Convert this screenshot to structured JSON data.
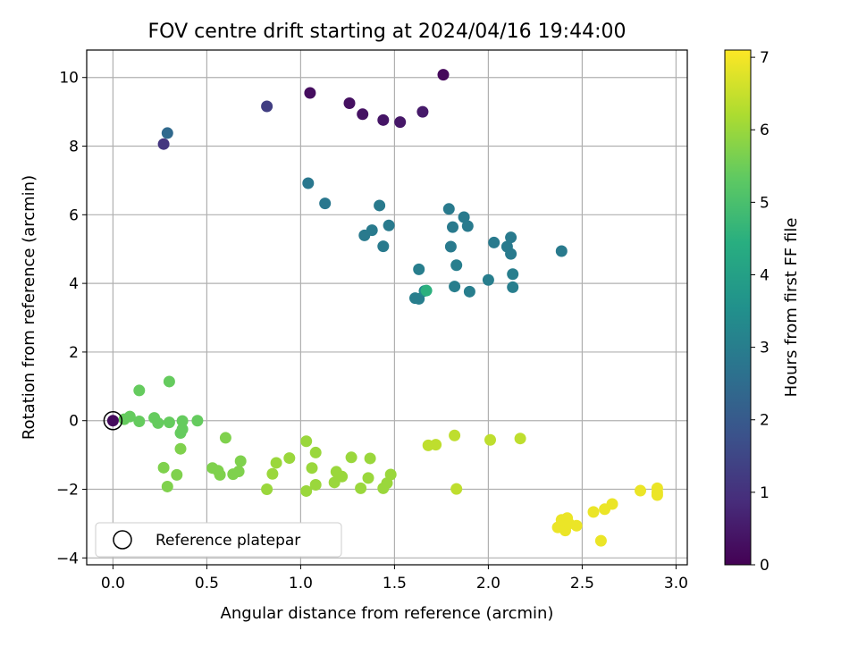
{
  "chart_data": {
    "type": "scatter",
    "title": "FOV centre drift starting at 2024/04/16 19:44:00",
    "xlabel": "Angular distance from reference (arcmin)",
    "ylabel": "Rotation from reference (arcmin)",
    "xlim": [
      -0.14,
      3.06
    ],
    "ylim": [
      -4.2,
      10.8
    ],
    "xticks": [
      "0.0",
      "0.5",
      "1.0",
      "1.5",
      "2.0",
      "2.5",
      "3.0"
    ],
    "xtick_values": [
      0,
      0.5,
      1.0,
      1.5,
      2.0,
      2.5,
      3.0
    ],
    "yticks": [
      "−4",
      "−2",
      "0",
      "2",
      "4",
      "6",
      "8",
      "10"
    ],
    "ytick_values": [
      -4,
      -2,
      0,
      2,
      4,
      6,
      8,
      10
    ],
    "grid": true,
    "legend": {
      "position": "lower-left",
      "entries": [
        "Reference platepar"
      ]
    },
    "colorbar": {
      "label": "Hours from first FF file",
      "colormap": "viridis",
      "range": [
        0,
        7.1
      ],
      "ticks": [
        "0",
        "1",
        "2",
        "3",
        "4",
        "5",
        "6",
        "7"
      ],
      "tick_values": [
        0,
        1,
        2,
        3,
        4,
        5,
        6,
        7
      ]
    },
    "reference_point": {
      "x": 0,
      "y": 0
    },
    "points": [
      {
        "x": 1.76,
        "y": 10.08,
        "c": 0.15
      },
      {
        "x": 1.05,
        "y": 9.55,
        "c": 0.25
      },
      {
        "x": 1.26,
        "y": 9.25,
        "c": 0.3
      },
      {
        "x": 1.33,
        "y": 8.93,
        "c": 0.35
      },
      {
        "x": 1.44,
        "y": 8.76,
        "c": 0.4
      },
      {
        "x": 1.53,
        "y": 8.7,
        "c": 0.45
      },
      {
        "x": 1.65,
        "y": 9.0,
        "c": 0.5
      },
      {
        "x": 0.82,
        "y": 9.16,
        "c": 1.3
      },
      {
        "x": 0.27,
        "y": 8.06,
        "c": 1.1
      },
      {
        "x": 0.29,
        "y": 8.38,
        "c": 2.4
      },
      {
        "x": 1.04,
        "y": 6.92,
        "c": 2.8
      },
      {
        "x": 1.13,
        "y": 6.33,
        "c": 2.8
      },
      {
        "x": 1.42,
        "y": 6.27,
        "c": 2.9
      },
      {
        "x": 1.47,
        "y": 5.69,
        "c": 2.9
      },
      {
        "x": 1.38,
        "y": 5.55,
        "c": 2.9
      },
      {
        "x": 1.34,
        "y": 5.4,
        "c": 2.9
      },
      {
        "x": 1.44,
        "y": 5.08,
        "c": 2.9
      },
      {
        "x": 1.79,
        "y": 6.17,
        "c": 2.9
      },
      {
        "x": 1.87,
        "y": 5.93,
        "c": 2.9
      },
      {
        "x": 1.81,
        "y": 5.64,
        "c": 2.9
      },
      {
        "x": 1.89,
        "y": 5.67,
        "c": 2.9
      },
      {
        "x": 1.8,
        "y": 5.07,
        "c": 2.9
      },
      {
        "x": 2.03,
        "y": 5.19,
        "c": 2.9
      },
      {
        "x": 2.1,
        "y": 5.07,
        "c": 2.9
      },
      {
        "x": 2.12,
        "y": 5.34,
        "c": 2.9
      },
      {
        "x": 2.12,
        "y": 4.86,
        "c": 2.9
      },
      {
        "x": 2.39,
        "y": 4.94,
        "c": 2.9
      },
      {
        "x": 1.63,
        "y": 4.41,
        "c": 3.0
      },
      {
        "x": 1.83,
        "y": 4.53,
        "c": 3.0
      },
      {
        "x": 2.13,
        "y": 4.27,
        "c": 3.0
      },
      {
        "x": 2.0,
        "y": 4.1,
        "c": 3.0
      },
      {
        "x": 1.82,
        "y": 3.91,
        "c": 3.0
      },
      {
        "x": 1.9,
        "y": 3.76,
        "c": 3.0
      },
      {
        "x": 2.13,
        "y": 3.89,
        "c": 3.0
      },
      {
        "x": 1.61,
        "y": 3.57,
        "c": 3.0
      },
      {
        "x": 1.63,
        "y": 3.55,
        "c": 3.0
      },
      {
        "x": 1.66,
        "y": 3.78,
        "c": 3.3
      },
      {
        "x": 1.67,
        "y": 3.79,
        "c": 4.5
      },
      {
        "x": 0.06,
        "y": 0.04,
        "c": 5.4
      },
      {
        "x": 0.09,
        "y": 0.12,
        "c": 5.4
      },
      {
        "x": 0.14,
        "y": -0.02,
        "c": 5.4
      },
      {
        "x": 0.14,
        "y": 0.88,
        "c": 5.4
      },
      {
        "x": 0.22,
        "y": 0.08,
        "c": 5.4
      },
      {
        "x": 0.24,
        "y": -0.07,
        "c": 5.4
      },
      {
        "x": 0.3,
        "y": -0.05,
        "c": 5.4
      },
      {
        "x": 0.3,
        "y": 1.14,
        "c": 5.4
      },
      {
        "x": 0.36,
        "y": -0.36,
        "c": 5.4
      },
      {
        "x": 0.37,
        "y": -0.25,
        "c": 5.4
      },
      {
        "x": 0.37,
        "y": -0.01,
        "c": 5.4
      },
      {
        "x": 0.45,
        "y": 0.0,
        "c": 5.4
      },
      {
        "x": 0.36,
        "y": -0.82,
        "c": 5.7
      },
      {
        "x": 0.27,
        "y": -1.37,
        "c": 5.7
      },
      {
        "x": 0.34,
        "y": -1.58,
        "c": 5.7
      },
      {
        "x": 0.29,
        "y": -1.92,
        "c": 5.7
      },
      {
        "x": 0.6,
        "y": -0.5,
        "c": 5.7
      },
      {
        "x": 0.53,
        "y": -1.38,
        "c": 5.7
      },
      {
        "x": 0.56,
        "y": -1.46,
        "c": 5.7
      },
      {
        "x": 0.57,
        "y": -1.58,
        "c": 5.7
      },
      {
        "x": 0.64,
        "y": -1.56,
        "c": 5.7
      },
      {
        "x": 0.67,
        "y": -1.48,
        "c": 5.7
      },
      {
        "x": 0.68,
        "y": -1.18,
        "c": 5.7
      },
      {
        "x": 0.87,
        "y": -1.23,
        "c": 6.0
      },
      {
        "x": 0.85,
        "y": -1.55,
        "c": 6.0
      },
      {
        "x": 0.82,
        "y": -2.0,
        "c": 6.0
      },
      {
        "x": 0.94,
        "y": -1.09,
        "c": 6.0
      },
      {
        "x": 1.03,
        "y": -0.6,
        "c": 6.0
      },
      {
        "x": 1.08,
        "y": -0.93,
        "c": 6.0
      },
      {
        "x": 1.06,
        "y": -1.38,
        "c": 6.0
      },
      {
        "x": 1.03,
        "y": -2.05,
        "c": 6.0
      },
      {
        "x": 1.08,
        "y": -1.87,
        "c": 6.0
      },
      {
        "x": 1.18,
        "y": -1.8,
        "c": 6.0
      },
      {
        "x": 1.19,
        "y": -1.49,
        "c": 6.0
      },
      {
        "x": 1.22,
        "y": -1.63,
        "c": 6.0
      },
      {
        "x": 1.27,
        "y": -1.07,
        "c": 6.0
      },
      {
        "x": 1.32,
        "y": -1.97,
        "c": 6.0
      },
      {
        "x": 1.36,
        "y": -1.67,
        "c": 6.0
      },
      {
        "x": 1.37,
        "y": -1.1,
        "c": 6.0
      },
      {
        "x": 1.44,
        "y": -1.97,
        "c": 6.0
      },
      {
        "x": 1.46,
        "y": -1.82,
        "c": 6.0
      },
      {
        "x": 1.48,
        "y": -1.57,
        "c": 6.0
      },
      {
        "x": 1.68,
        "y": -0.72,
        "c": 6.4
      },
      {
        "x": 1.72,
        "y": -0.7,
        "c": 6.4
      },
      {
        "x": 1.82,
        "y": -0.43,
        "c": 6.4
      },
      {
        "x": 1.83,
        "y": -1.99,
        "c": 6.4
      },
      {
        "x": 2.01,
        "y": -0.56,
        "c": 6.4
      },
      {
        "x": 2.17,
        "y": -0.52,
        "c": 6.4
      },
      {
        "x": 2.37,
        "y": -3.11,
        "c": 6.9
      },
      {
        "x": 2.39,
        "y": -2.89,
        "c": 6.9
      },
      {
        "x": 2.41,
        "y": -3.2,
        "c": 6.9
      },
      {
        "x": 2.42,
        "y": -2.84,
        "c": 6.9
      },
      {
        "x": 2.43,
        "y": -3.0,
        "c": 6.9
      },
      {
        "x": 2.47,
        "y": -3.06,
        "c": 6.9
      },
      {
        "x": 2.56,
        "y": -2.66,
        "c": 6.9
      },
      {
        "x": 2.6,
        "y": -3.5,
        "c": 6.9
      },
      {
        "x": 2.62,
        "y": -2.58,
        "c": 6.9
      },
      {
        "x": 2.66,
        "y": -2.43,
        "c": 6.9
      },
      {
        "x": 2.81,
        "y": -2.04,
        "c": 6.9
      },
      {
        "x": 2.9,
        "y": -1.97,
        "c": 6.9
      },
      {
        "x": 2.9,
        "y": -2.09,
        "c": 6.9
      },
      {
        "x": 2.9,
        "y": -2.17,
        "c": 6.9
      },
      {
        "x": 0.0,
        "y": 0.0,
        "c": 0.2
      }
    ]
  }
}
